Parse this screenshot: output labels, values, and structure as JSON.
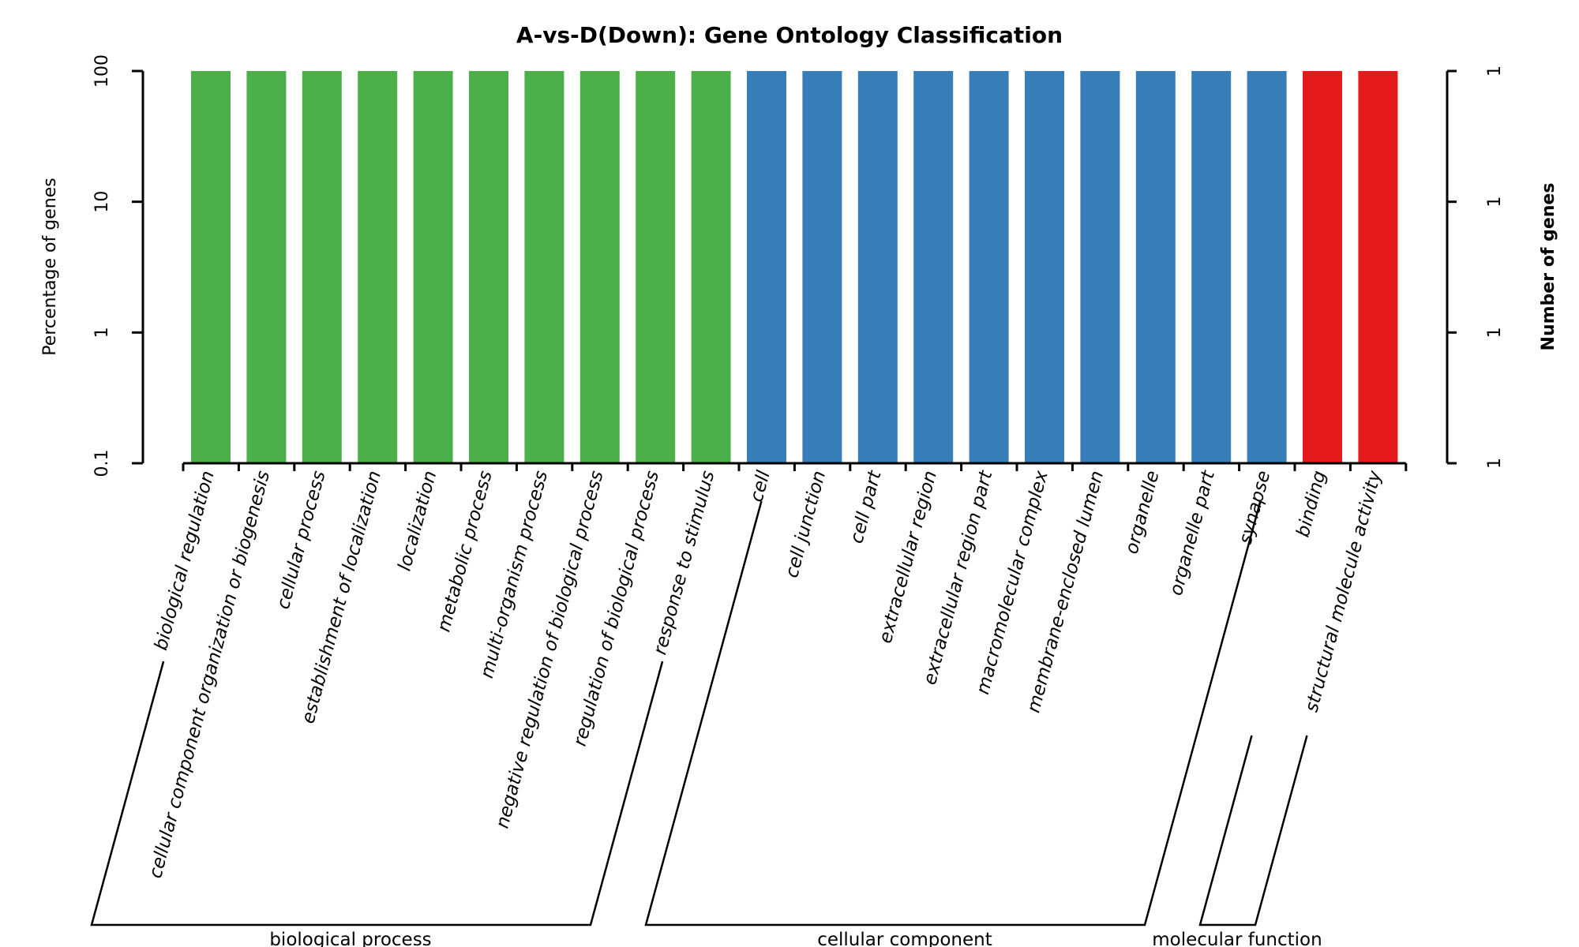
{
  "chart_data": {
    "type": "bar",
    "title": "A-vs-D(Down): Gene Ontology Classification",
    "ylabel": "Percentage of genes",
    "y2label": "Number of genes",
    "yscale": "log",
    "ylim": [
      0.1,
      100
    ],
    "yticks": [
      {
        "value": 0.1,
        "label": "0.1"
      },
      {
        "value": 1,
        "label": "1"
      },
      {
        "value": 10,
        "label": "10"
      },
      {
        "value": 100,
        "label": "100"
      }
    ],
    "y2ticks": [
      "1",
      "1",
      "1",
      "1"
    ],
    "categories": [
      "biological regulation",
      "cellular component organization or biogenesis",
      "cellular process",
      "establishment of localization",
      "localization",
      "metabolic process",
      "multi-organism process",
      "negative regulation of biological process",
      "regulation of biological process",
      "response to stimulus",
      "cell",
      "cell junction",
      "cell part",
      "extracellular region",
      "extracellular region part",
      "macromolecular complex",
      "membrane-enclosed lumen",
      "organelle",
      "organelle part",
      "synapse",
      "binding",
      "structural molecule activity"
    ],
    "values": [
      100,
      100,
      100,
      100,
      100,
      100,
      100,
      100,
      100,
      100,
      100,
      100,
      100,
      100,
      100,
      100,
      100,
      100,
      100,
      100,
      100,
      100
    ],
    "groups": [
      {
        "name": "biological process",
        "start": 0,
        "end": 9,
        "color": "#4daf4a"
      },
      {
        "name": "cellular component",
        "start": 10,
        "end": 19,
        "color": "#377eb8"
      },
      {
        "name": "molecular function",
        "start": 20,
        "end": 21,
        "color": "#e41a1c"
      }
    ]
  }
}
